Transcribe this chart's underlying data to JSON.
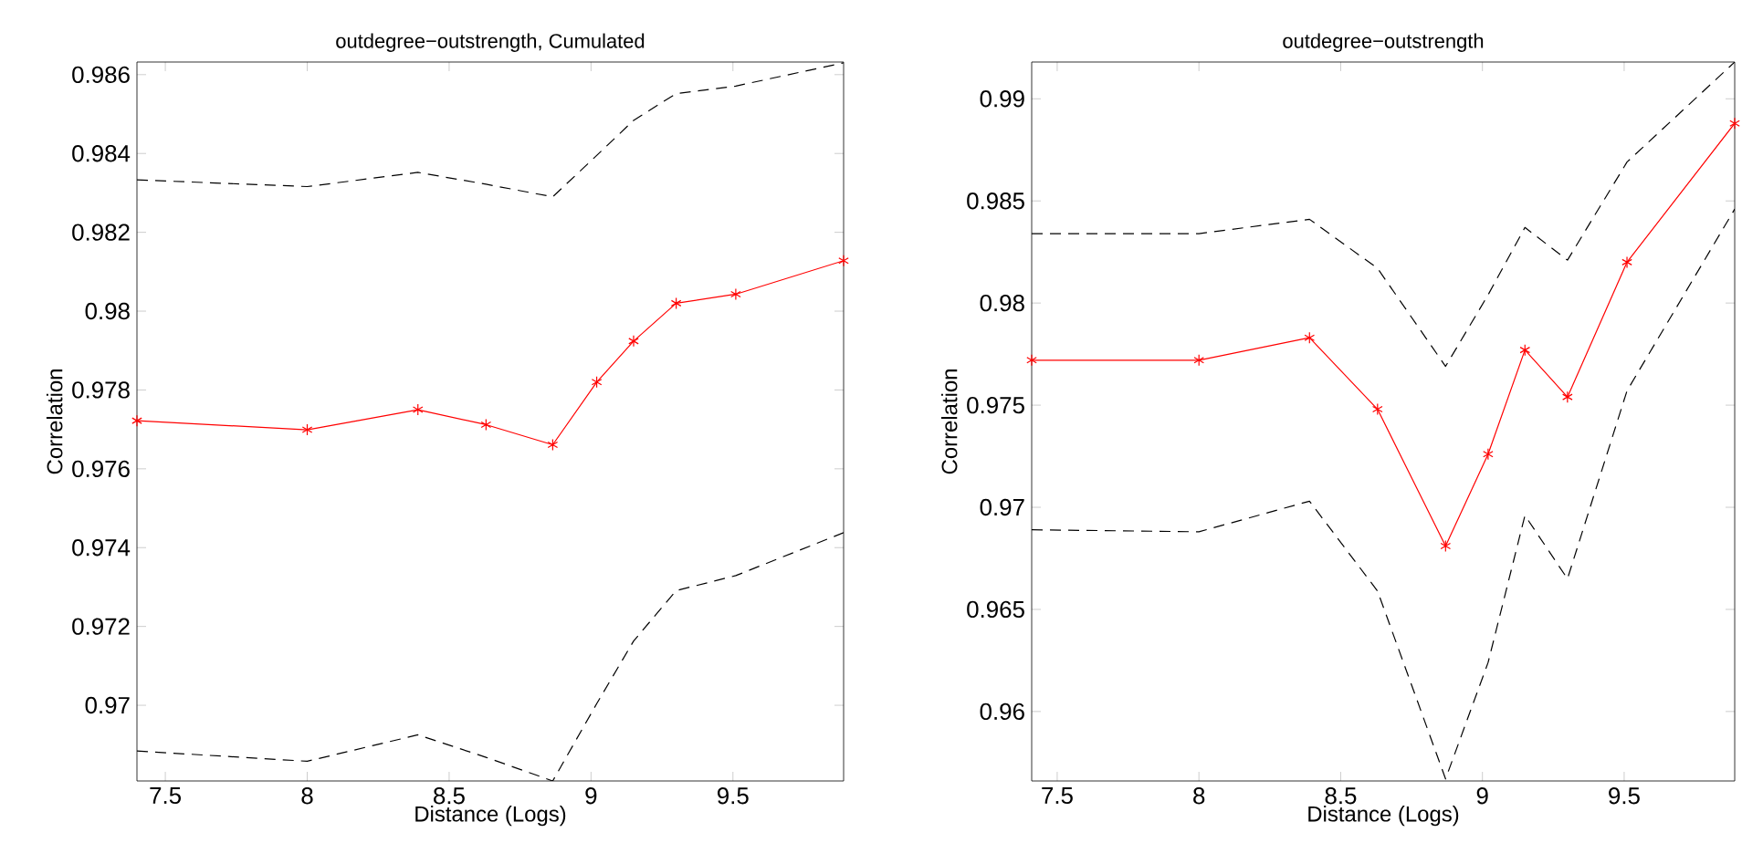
{
  "chart_data": [
    {
      "type": "line",
      "title": "outdegree−outstrength, Cumulated",
      "xlabel": "Distance (Logs)",
      "ylabel": "Correlation",
      "x": [
        7.4,
        8.0,
        8.39,
        8.63,
        8.865,
        9.02,
        9.15,
        9.3,
        9.51,
        9.89
      ],
      "series": [
        {
          "color": "#ff0000",
          "marker": "cross",
          "line_style": "solid",
          "values": [
            0.97722,
            0.97699,
            0.9775,
            0.97712,
            0.97661,
            0.9782,
            0.97924,
            0.9802,
            0.98043,
            0.98128
          ]
        },
        {
          "color": "#000000",
          "marker": "none",
          "line_style": "dashed",
          "values": [
            0.98333,
            0.98316,
            0.98352,
            0.98322,
            0.9829,
            0.98395,
            0.98484,
            0.98552,
            0.98571,
            0.9863
          ]
        },
        {
          "color": "#000000",
          "marker": "none",
          "line_style": "dashed",
          "values": [
            0.96884,
            0.96858,
            0.96925,
            0.96868,
            0.96808,
            0.97004,
            0.97163,
            0.97291,
            0.97329,
            0.97438
          ]
        }
      ],
      "xlim": [
        7.4,
        9.89
      ],
      "ylim": [
        0.96808,
        0.98632
      ],
      "xticks": [
        7.5,
        8,
        8.5,
        9,
        9.5
      ],
      "yticks": [
        0.97,
        0.972,
        0.974,
        0.976,
        0.978,
        0.98,
        0.982,
        0.984,
        0.986
      ],
      "grid": false
    },
    {
      "type": "line",
      "title": "outdegree−outstrength",
      "xlabel": "Distance (Logs)",
      "ylabel": "Correlation",
      "x": [
        7.41,
        8.0,
        8.39,
        8.63,
        8.87,
        9.02,
        9.15,
        9.3,
        9.51,
        9.89
      ],
      "series": [
        {
          "color": "#ff0000",
          "marker": "cross",
          "line_style": "solid",
          "values": [
            0.9772,
            0.9772,
            0.9783,
            0.9748,
            0.9681,
            0.9726,
            0.9777,
            0.9754,
            0.982,
            0.9888
          ]
        },
        {
          "color": "#000000",
          "marker": "none",
          "line_style": "dashed",
          "values": [
            0.9834,
            0.9834,
            0.9841,
            0.9817,
            0.9769,
            0.9804,
            0.9837,
            0.9821,
            0.9869,
            0.9918
          ]
        },
        {
          "color": "#000000",
          "marker": "none",
          "line_style": "dashed",
          "values": [
            0.9689,
            0.9688,
            0.9703,
            0.9659,
            0.9567,
            0.9624,
            0.9696,
            0.9665,
            0.9757,
            0.9846
          ]
        }
      ],
      "xlim": [
        7.41,
        9.89
      ],
      "ylim": [
        0.9566,
        0.9918
      ],
      "xticks": [
        7.5,
        8,
        8.5,
        9,
        9.5
      ],
      "yticks": [
        0.96,
        0.965,
        0.97,
        0.975,
        0.98,
        0.985,
        0.99
      ],
      "grid": false
    }
  ]
}
